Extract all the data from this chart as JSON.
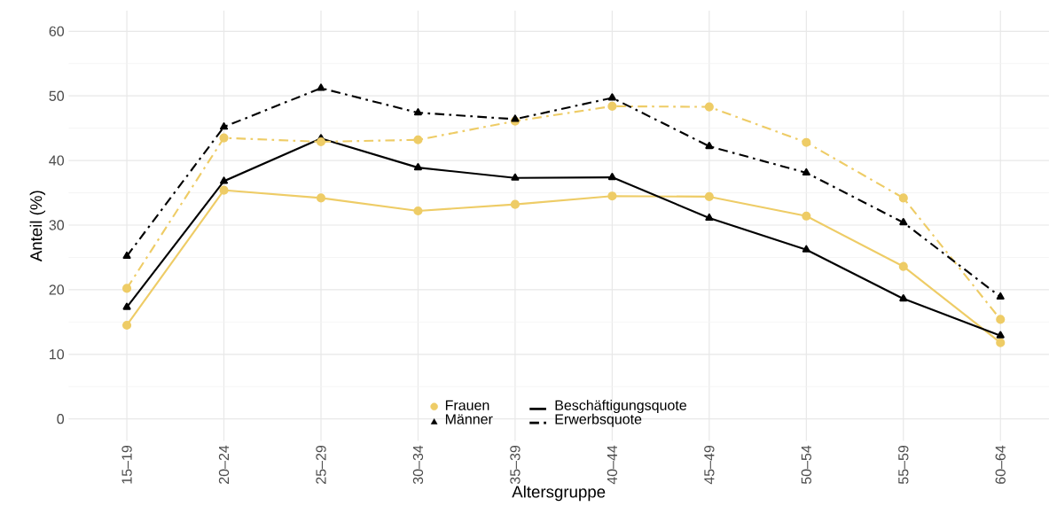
{
  "chart_data": {
    "type": "line",
    "xlabel": "Altersgruppe",
    "ylabel": "Anteil (%)",
    "categories": [
      "15–19",
      "20–24",
      "25–29",
      "30–34",
      "35–39",
      "40–44",
      "45–49",
      "50–54",
      "55–59",
      "60–64"
    ],
    "series": [
      {
        "name": "Frauen",
        "color": "#eecc66",
        "marker": "circle",
        "line_style": "solid",
        "values": [
          14.5,
          35.4,
          34.2,
          32.2,
          33.2,
          34.5,
          34.4,
          31.4,
          23.6,
          11.8
        ]
      },
      {
        "name": "Männer",
        "color": "#000000",
        "marker": "triangle",
        "line_style": "solid",
        "values": [
          17.3,
          36.8,
          43.4,
          38.9,
          37.3,
          37.4,
          31.1,
          26.2,
          18.6,
          12.9
        ]
      },
      {
        "color": "#eecc66",
        "marker": "circle",
        "line_style": "dashdot",
        "values": [
          20.2,
          43.5,
          42.9,
          43.2,
          46.1,
          48.4,
          48.3,
          42.8,
          34.2,
          15.4
        ]
      },
      {
        "color": "#000000",
        "marker": "triangle",
        "line_style": "dashdot",
        "values": [
          25.2,
          45.2,
          51.2,
          47.4,
          46.4,
          49.7,
          42.2,
          38.1,
          30.4,
          18.9
        ]
      }
    ],
    "annotations": [
      "Beschäftigungsquote",
      "Erwerbsquote"
    ],
    "ylim": [
      -3.4,
      63.2
    ],
    "yticks": [
      0,
      10,
      20,
      30,
      40,
      50,
      60
    ],
    "grid": true,
    "legend": "bottom"
  }
}
